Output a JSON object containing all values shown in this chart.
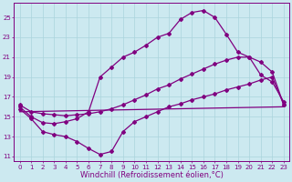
{
  "background_color": "#cce9f0",
  "grid_color": "#aad4dc",
  "line_color": "#800080",
  "xlim": [
    -0.5,
    23.5
  ],
  "ylim": [
    10.5,
    26.5
  ],
  "yticks": [
    11,
    13,
    15,
    17,
    19,
    21,
    23,
    25
  ],
  "xticks": [
    0,
    1,
    2,
    3,
    4,
    5,
    6,
    7,
    8,
    9,
    10,
    11,
    12,
    13,
    14,
    15,
    16,
    17,
    18,
    19,
    20,
    21,
    22,
    23
  ],
  "xlabel": "Windchill (Refroidissement éolien,°C)",
  "line1_x": [
    0,
    1,
    2,
    3,
    4,
    5,
    6,
    7,
    8,
    9,
    10,
    11,
    12,
    13,
    14,
    15,
    16,
    17,
    18,
    19,
    20,
    21,
    22,
    23
  ],
  "line1_y": [
    16.0,
    15.0,
    14.4,
    14.3,
    14.5,
    14.8,
    15.5,
    19.0,
    20.0,
    21.0,
    21.5,
    22.2,
    23.0,
    23.4,
    24.8,
    25.5,
    25.7,
    25.0,
    23.3,
    21.5,
    21.0,
    19.2,
    18.5,
    16.5
  ],
  "line2_x": [
    0,
    1,
    2,
    3,
    4,
    5,
    6,
    7,
    8,
    9,
    10,
    11,
    12,
    13,
    14,
    15,
    16,
    17,
    18,
    19,
    20,
    21,
    22,
    23
  ],
  "line2_y": [
    16.2,
    15.5,
    15.3,
    15.2,
    15.1,
    15.2,
    15.3,
    15.5,
    15.8,
    16.2,
    16.7,
    17.2,
    17.8,
    18.2,
    18.8,
    19.3,
    19.8,
    20.3,
    20.7,
    21.0,
    21.0,
    20.5,
    19.5,
    16.2
  ],
  "line3_x": [
    0,
    1,
    2,
    3,
    4,
    5,
    6,
    7,
    8,
    9,
    10,
    11,
    12,
    13,
    14,
    15,
    16,
    17,
    18,
    19,
    20,
    21,
    22,
    23
  ],
  "line3_y": [
    15.8,
    14.8,
    13.5,
    13.2,
    13.0,
    12.5,
    11.8,
    11.2,
    11.5,
    13.5,
    14.5,
    15.0,
    15.5,
    16.0,
    16.3,
    16.7,
    17.0,
    17.3,
    17.7,
    18.0,
    18.3,
    18.7,
    19.0,
    16.2
  ],
  "line4_x": [
    0,
    23
  ],
  "line4_y": [
    15.5,
    16.0
  ],
  "marker": "D",
  "markersize": 2.0,
  "linewidth": 0.9,
  "tick_fontsize": 5,
  "xlabel_fontsize": 6
}
